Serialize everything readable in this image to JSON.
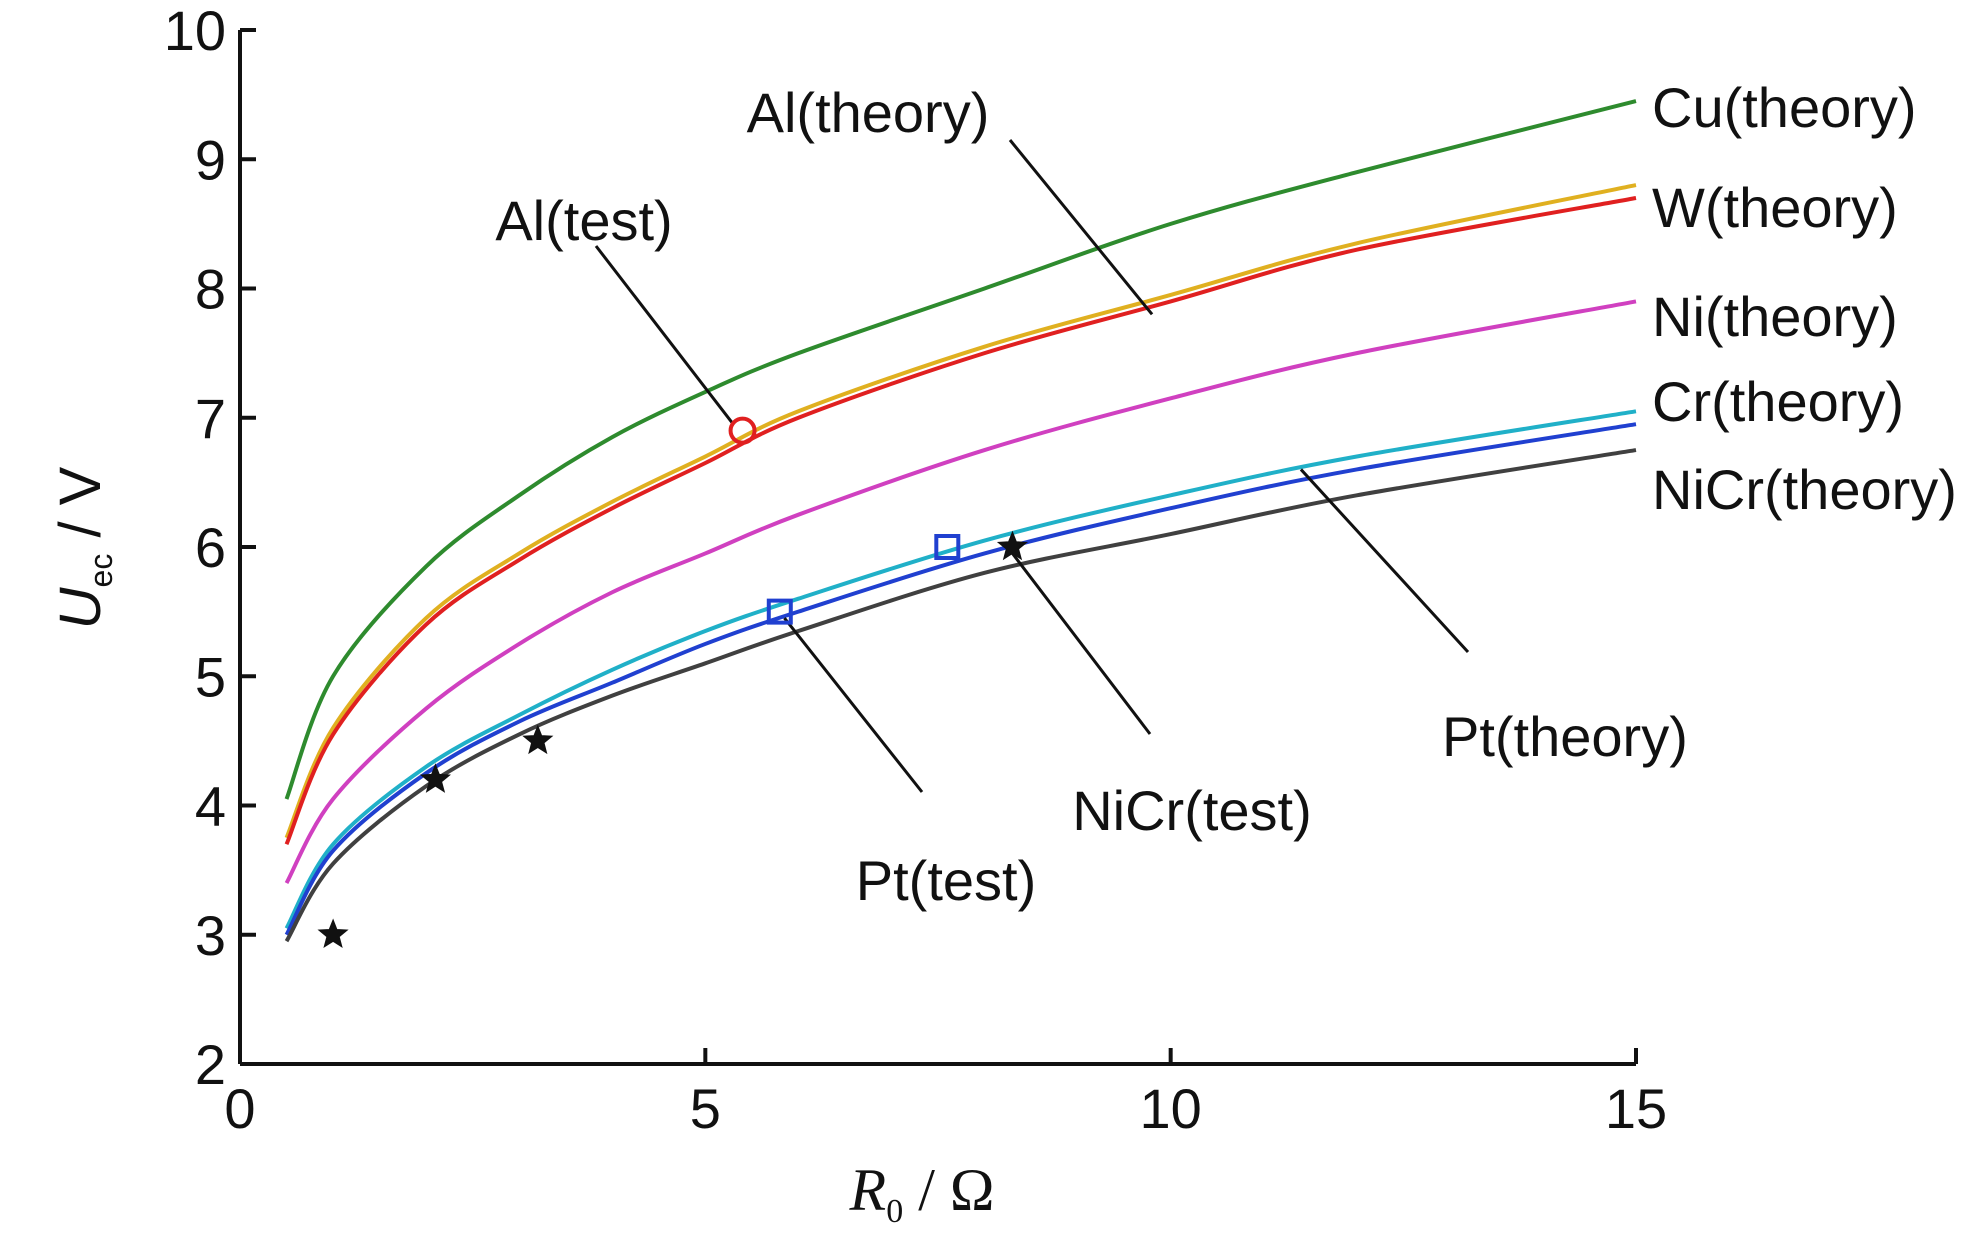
{
  "chart_data": {
    "type": "line",
    "xlabel": {
      "symbol": "R",
      "subscript": "0",
      "unit": " / Ω"
    },
    "ylabel": {
      "symbol": "U",
      "subscript": "ec",
      "unit": " / V"
    },
    "xlim": [
      0,
      15
    ],
    "ylim": [
      2,
      10
    ],
    "xticks": [
      "0",
      "5",
      "10",
      "15"
    ],
    "yticks": [
      "2",
      "3",
      "4",
      "5",
      "6",
      "7",
      "8",
      "9",
      "10"
    ],
    "grid": false,
    "series": [
      {
        "name": "Cu(theory)",
        "color": "#2e8b2e",
        "x": [
          0.5,
          1,
          2,
          3,
          4,
          5,
          6,
          8,
          10,
          12,
          15
        ],
        "y": [
          4.05,
          5.0,
          5.85,
          6.4,
          6.85,
          7.2,
          7.5,
          8.0,
          8.5,
          8.9,
          9.45
        ]
      },
      {
        "name": "Al(theory)",
        "color": "#e0b020",
        "x": [
          0.5,
          1,
          2,
          3,
          4,
          5,
          6,
          8,
          10,
          12,
          15
        ],
        "y": [
          3.75,
          4.6,
          5.45,
          5.95,
          6.35,
          6.7,
          7.05,
          7.55,
          7.95,
          8.35,
          8.8
        ]
      },
      {
        "name": "W(theory)",
        "color": "#e02020",
        "x": [
          0.5,
          1,
          2,
          3,
          4,
          5,
          6,
          8,
          10,
          12,
          15
        ],
        "y": [
          3.7,
          4.55,
          5.4,
          5.9,
          6.3,
          6.65,
          7.0,
          7.5,
          7.9,
          8.3,
          8.7
        ]
      },
      {
        "name": "Ni(theory)",
        "color": "#d040c0",
        "x": [
          0.5,
          1,
          2,
          3,
          4,
          5,
          6,
          8,
          10,
          12,
          15
        ],
        "y": [
          3.4,
          4.05,
          4.75,
          5.25,
          5.65,
          5.95,
          6.25,
          6.75,
          7.15,
          7.5,
          7.9
        ]
      },
      {
        "name": "Cr(theory)",
        "color": "#20b0c8",
        "x": [
          0.5,
          1,
          2,
          3,
          4,
          5,
          6,
          8,
          10,
          12,
          15
        ],
        "y": [
          3.05,
          3.7,
          4.3,
          4.7,
          5.05,
          5.35,
          5.6,
          6.05,
          6.4,
          6.7,
          7.05
        ]
      },
      {
        "name": "Pt(theory)",
        "color": "#2040d0",
        "x": [
          0.5,
          1,
          2,
          3,
          4,
          5,
          6,
          8,
          10,
          12,
          15
        ],
        "y": [
          3.0,
          3.65,
          4.25,
          4.65,
          4.95,
          5.25,
          5.5,
          5.95,
          6.3,
          6.6,
          6.95
        ]
      },
      {
        "name": "NiCr(theory)",
        "color": "#404040",
        "x": [
          0.5,
          1,
          2,
          3,
          4,
          5,
          6,
          8,
          10,
          12,
          15
        ],
        "y": [
          2.95,
          3.55,
          4.15,
          4.55,
          4.85,
          5.1,
          5.35,
          5.8,
          6.1,
          6.4,
          6.75
        ]
      }
    ],
    "markers": [
      {
        "name": "Al(test)",
        "shape": "circle",
        "color": "#e02020",
        "points": [
          [
            5.4,
            6.9
          ]
        ]
      },
      {
        "name": "Pt(test)",
        "shape": "square",
        "color": "#2040d0",
        "points": [
          [
            5.8,
            5.5
          ],
          [
            7.6,
            6.0
          ]
        ]
      },
      {
        "name": "NiCr(test)",
        "shape": "star",
        "color": "#111111",
        "points": [
          [
            1.0,
            3.0
          ],
          [
            2.1,
            4.2
          ],
          [
            3.2,
            4.5
          ],
          [
            8.3,
            6.0
          ]
        ]
      }
    ],
    "annotations": [
      {
        "text": "Al(theory)",
        "type": "leader",
        "target": [
          9.8,
          7.8
        ]
      },
      {
        "text": "Al(test)",
        "type": "leader",
        "target": [
          5.3,
          6.95
        ]
      },
      {
        "text": "Pt(test)",
        "type": "leader",
        "target": [
          5.85,
          5.45
        ]
      },
      {
        "text": "NiCr(test)",
        "type": "leader",
        "target": [
          8.3,
          5.95
        ]
      },
      {
        "text": "Pt(theory)",
        "type": "leader",
        "target": [
          11.4,
          6.6
        ]
      },
      {
        "text": "Cu(theory)",
        "type": "end-label"
      },
      {
        "text": "W(theory)",
        "type": "end-label"
      },
      {
        "text": "Ni(theory)",
        "type": "end-label"
      },
      {
        "text": "Cr(theory)",
        "type": "end-label"
      },
      {
        "text": "NiCr(theory)",
        "type": "end-label"
      }
    ]
  }
}
